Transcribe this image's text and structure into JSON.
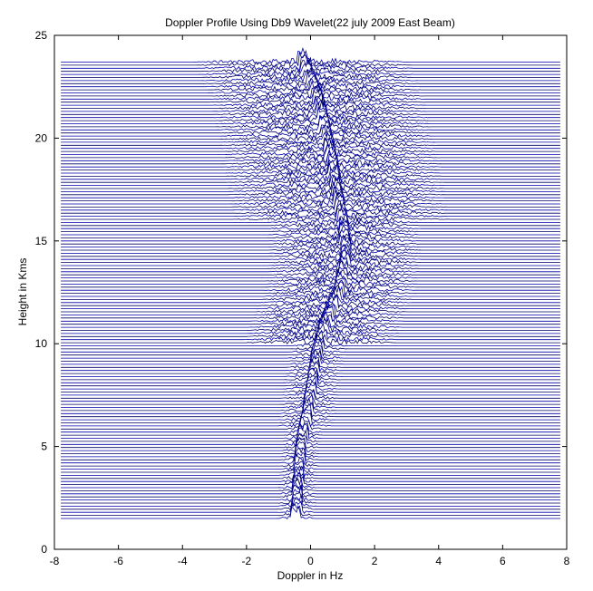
{
  "chart_data": {
    "type": "line",
    "title": "Doppler Profile Using Db9 Wavelet(22 july 2009 East Beam)",
    "xlabel": "Doppler in Hz",
    "ylabel": "Height in Kms",
    "xlim": [
      -8,
      8
    ],
    "ylim": [
      0,
      25
    ],
    "x_ticks": [
      -8,
      -6,
      -4,
      -2,
      0,
      2,
      4,
      6,
      8
    ],
    "y_ticks": [
      0,
      5,
      10,
      15,
      20,
      25
    ],
    "x_tick_labels": [
      "-8",
      "-6",
      "-4",
      "-2",
      "0",
      "2",
      "4",
      "6",
      "8"
    ],
    "y_tick_labels": [
      "0",
      "5",
      "10",
      "15",
      "20",
      "25"
    ],
    "grid": false,
    "trace_color": "#0000aa",
    "trace_x_range": [
      -7.8,
      7.8
    ],
    "height_range_km": [
      1.5,
      23.8
    ],
    "height_step_km": 0.15,
    "peak_doppler_by_height": [
      {
        "height_km": 1.5,
        "doppler_hz": -0.45
      },
      {
        "height_km": 3.0,
        "doppler_hz": -0.4
      },
      {
        "height_km": 5.0,
        "doppler_hz": -0.3
      },
      {
        "height_km": 6.5,
        "doppler_hz": -0.1
      },
      {
        "height_km": 8.0,
        "doppler_hz": 0.05
      },
      {
        "height_km": 9.5,
        "doppler_hz": 0.2
      },
      {
        "height_km": 11.0,
        "doppler_hz": 0.5
      },
      {
        "height_km": 12.5,
        "doppler_hz": 0.9
      },
      {
        "height_km": 14.0,
        "doppler_hz": 1.1
      },
      {
        "height_km": 15.5,
        "doppler_hz": 1.05
      },
      {
        "height_km": 17.0,
        "doppler_hz": 0.85
      },
      {
        "height_km": 18.5,
        "doppler_hz": 0.7
      },
      {
        "height_km": 20.0,
        "doppler_hz": 0.5
      },
      {
        "height_km": 22.0,
        "doppler_hz": 0.2
      },
      {
        "height_km": 23.8,
        "doppler_hz": -0.3
      }
    ]
  }
}
